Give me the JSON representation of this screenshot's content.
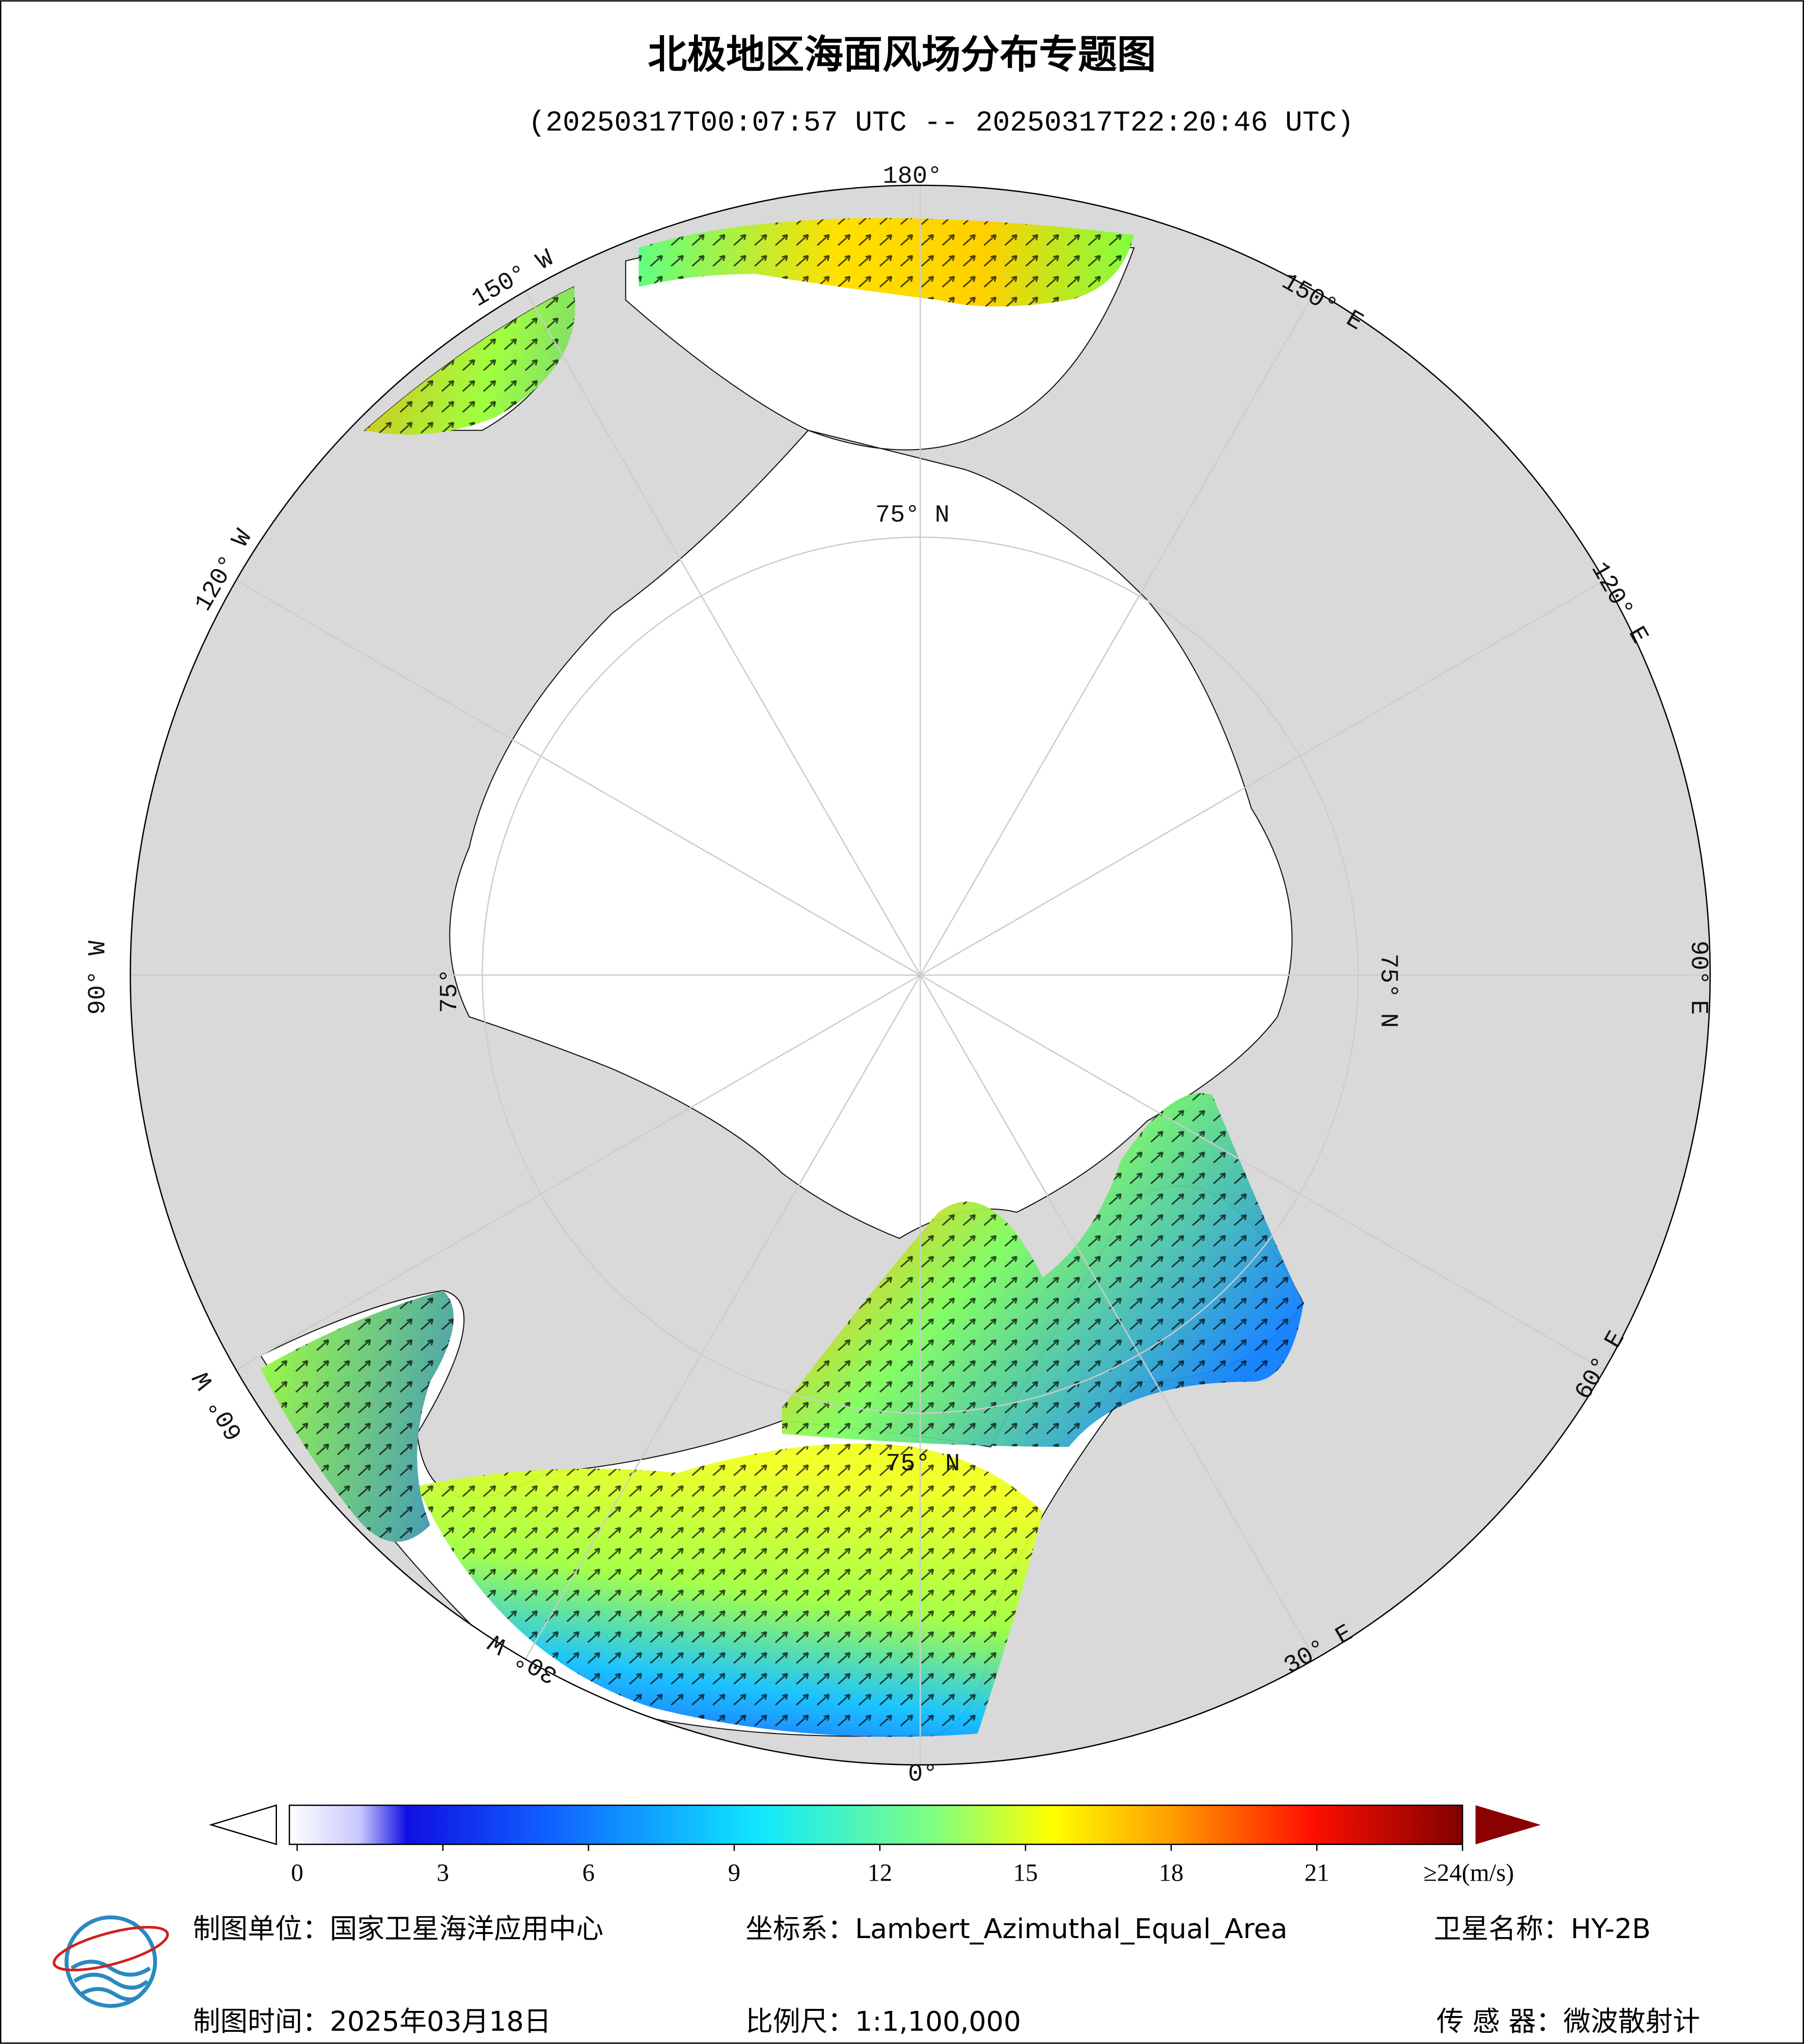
{
  "title": "北极地区海面风场分布专题图",
  "subtitle": "(20250317T00:07:57 UTC -- 20250317T22:20:46 UTC)",
  "map": {
    "longitude_labels": [
      "180°",
      "150° E",
      "120° E",
      "90° E",
      "60° E",
      "30° E",
      "0°",
      "30° W",
      "60° W",
      "90° W",
      "120° W",
      "150° W"
    ],
    "latitude_labels": [
      "75° N",
      "75° N",
      "75°",
      "75° N"
    ]
  },
  "colorbar": {
    "lim": [
      0,
      24
    ],
    "ticks": [
      0,
      3,
      6,
      9,
      12,
      15,
      18,
      21,
      {
        "value": 24,
        "label": "≥24(m/s)"
      }
    ]
  },
  "footer": {
    "producer": "制图单位：国家卫星海洋应用中心",
    "crs": "坐标系：Lambert_Azimuthal_Equal_Area",
    "satellite": "卫星名称：HY-2B",
    "time": "制图时间：2025年03月18日",
    "scale": "比例尺：1:1,100,000",
    "sensor": "传 感 器：微波散射计"
  }
}
